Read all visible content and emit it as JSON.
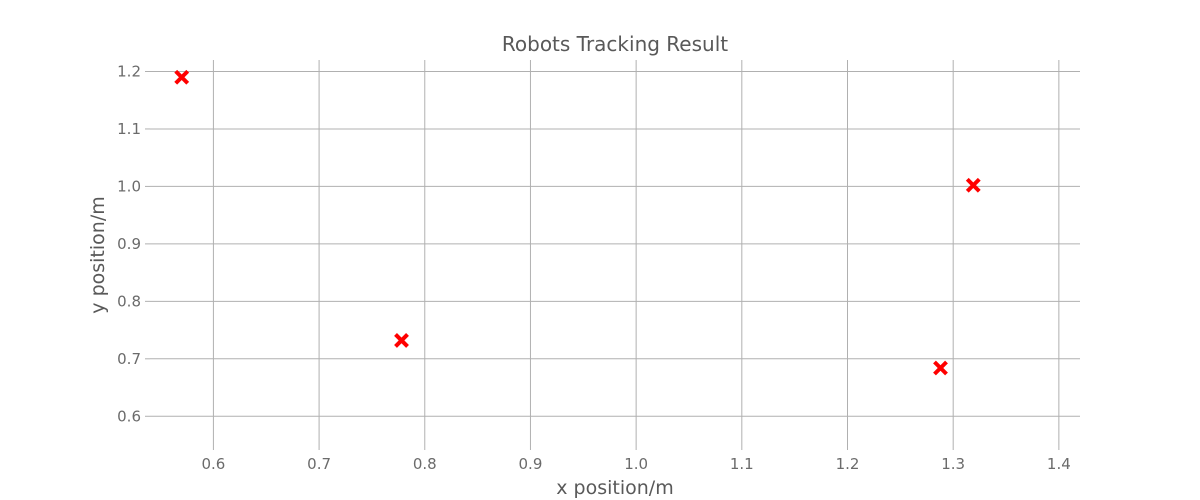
{
  "chart_data": {
    "type": "scatter",
    "title": "Robots Tracking Result",
    "xlabel": "x position/m",
    "ylabel": "y position/m",
    "xlim": [
      0.54,
      1.42
    ],
    "ylim": [
      0.55,
      1.22
    ],
    "xticks": [
      0.6,
      0.7,
      0.8,
      0.9,
      1.0,
      1.1,
      1.2,
      1.3,
      1.4
    ],
    "yticks": [
      0.6,
      0.7,
      0.8,
      0.9,
      1.0,
      1.1,
      1.2
    ],
    "grid": true,
    "marker": "x",
    "marker_color": "#ff0000",
    "points": [
      {
        "x": 0.57,
        "y": 1.19
      },
      {
        "x": 0.778,
        "y": 0.732
      },
      {
        "x": 1.288,
        "y": 0.684
      },
      {
        "x": 1.319,
        "y": 1.002
      }
    ]
  }
}
